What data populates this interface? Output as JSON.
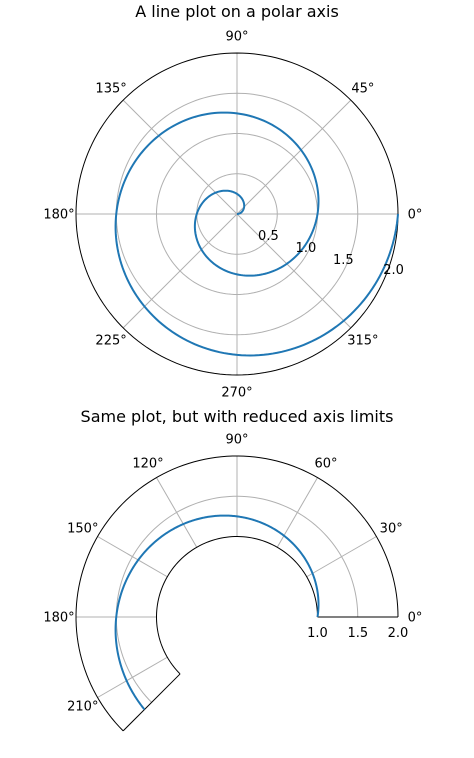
{
  "chart_data": [
    {
      "type": "line",
      "projection": "polar",
      "title": "A line plot on a polar axis",
      "theta_range_deg": [
        0,
        360
      ],
      "rlim": [
        0,
        2.0
      ],
      "r_ticks": [
        0.5,
        1.0,
        1.5,
        2.0
      ],
      "r_tick_labels": [
        "0.5",
        "1.0",
        "1.5",
        "2.0"
      ],
      "r_label_angle_deg": 22.5,
      "theta_ticks_deg": [
        0,
        45,
        90,
        135,
        180,
        225,
        270,
        315
      ],
      "theta_tick_labels": [
        "0°",
        "45°",
        "90°",
        "135°",
        "180°",
        "225°",
        "270°",
        "315°"
      ],
      "grid": true,
      "series": [
        {
          "color": "#1f77b4",
          "equation": "r = theta / (2*pi)",
          "r": [
            0.0,
            0.125,
            0.25,
            0.375,
            0.5,
            0.625,
            0.75,
            0.875,
            1.0,
            1.125,
            1.25,
            1.375,
            1.5,
            1.625,
            1.75,
            1.875,
            2.0
          ],
          "theta_deg": [
            0,
            45,
            90,
            135,
            180,
            225,
            270,
            315,
            360,
            405,
            450,
            495,
            540,
            585,
            630,
            675,
            720
          ]
        }
      ]
    },
    {
      "type": "line",
      "projection": "polar",
      "title": "Same plot, but with reduced axis limits",
      "theta_range_deg": [
        0,
        225
      ],
      "rlim": [
        1.0,
        2.0
      ],
      "r_origin": 0,
      "r_ticks": [
        1.0,
        1.5,
        2.0
      ],
      "r_tick_labels": [
        "1.0",
        "1.5",
        "2.0"
      ],
      "theta_ticks_deg": [
        0,
        30,
        60,
        90,
        120,
        150,
        180,
        210
      ],
      "theta_tick_labels": [
        "0°",
        "30°",
        "60°",
        "90°",
        "120°",
        "150°",
        "180°",
        "210°"
      ],
      "grid": true,
      "series": [
        {
          "color": "#1f77b4",
          "equation": "r = theta / (2*pi)",
          "r": [
            1.0,
            1.125,
            1.25,
            1.375,
            1.5,
            1.625
          ],
          "theta_deg": [
            360,
            405,
            450,
            495,
            540,
            585
          ]
        }
      ]
    }
  ]
}
